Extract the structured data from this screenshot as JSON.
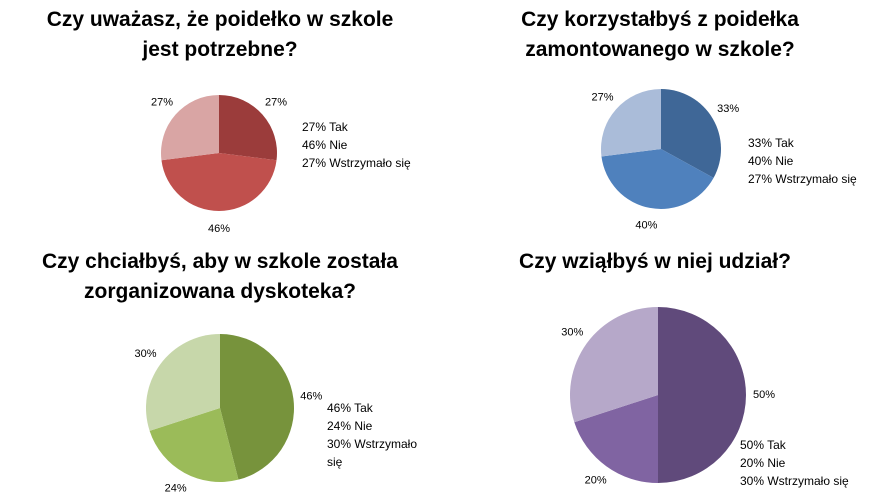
{
  "chart_data": [
    {
      "type": "pie",
      "title": "Czy uważasz, że poidełko w szkole\njest potrzebne?",
      "categories": [
        "27% Tak",
        "46% Nie",
        "27% Wstrzymało się"
      ],
      "values": [
        27,
        46,
        27
      ],
      "value_labels": [
        "27%",
        "46%",
        "27%"
      ],
      "colors": [
        "#9b3c3b",
        "#c0504d",
        "#d9a5a4"
      ]
    },
    {
      "type": "pie",
      "title": "Czy korzystałbyś z poidełka\nzamontowanego w szkole?",
      "categories": [
        "33% Tak",
        "40% Nie",
        "27% Wstrzymało się"
      ],
      "values": [
        33,
        40,
        27
      ],
      "value_labels": [
        "33%",
        "40%",
        "27%"
      ],
      "colors": [
        "#3f6797",
        "#4f81bd",
        "#aabcd9"
      ]
    },
    {
      "type": "pie",
      "title": "Czy chciałbyś, aby w szkole została\nzorganizowana dyskoteka?",
      "categories": [
        "46% Tak",
        "24% Nie",
        "30% Wstrzymało się"
      ],
      "values": [
        46,
        24,
        30
      ],
      "value_labels": [
        "46%",
        "24%",
        "30%"
      ],
      "colors": [
        "#77933c",
        "#9bbb59",
        "#c7d7aa"
      ]
    },
    {
      "type": "pie",
      "title": "Czy wziąłbyś w niej udział?",
      "categories": [
        "50% Tak",
        "20% Nie",
        "30% Wstrzymało się"
      ],
      "values": [
        50,
        20,
        30
      ],
      "value_labels": [
        "50%",
        "20%",
        "30%"
      ],
      "colors": [
        "#604a7b",
        "#8064a2",
        "#b6a8c9"
      ]
    }
  ]
}
